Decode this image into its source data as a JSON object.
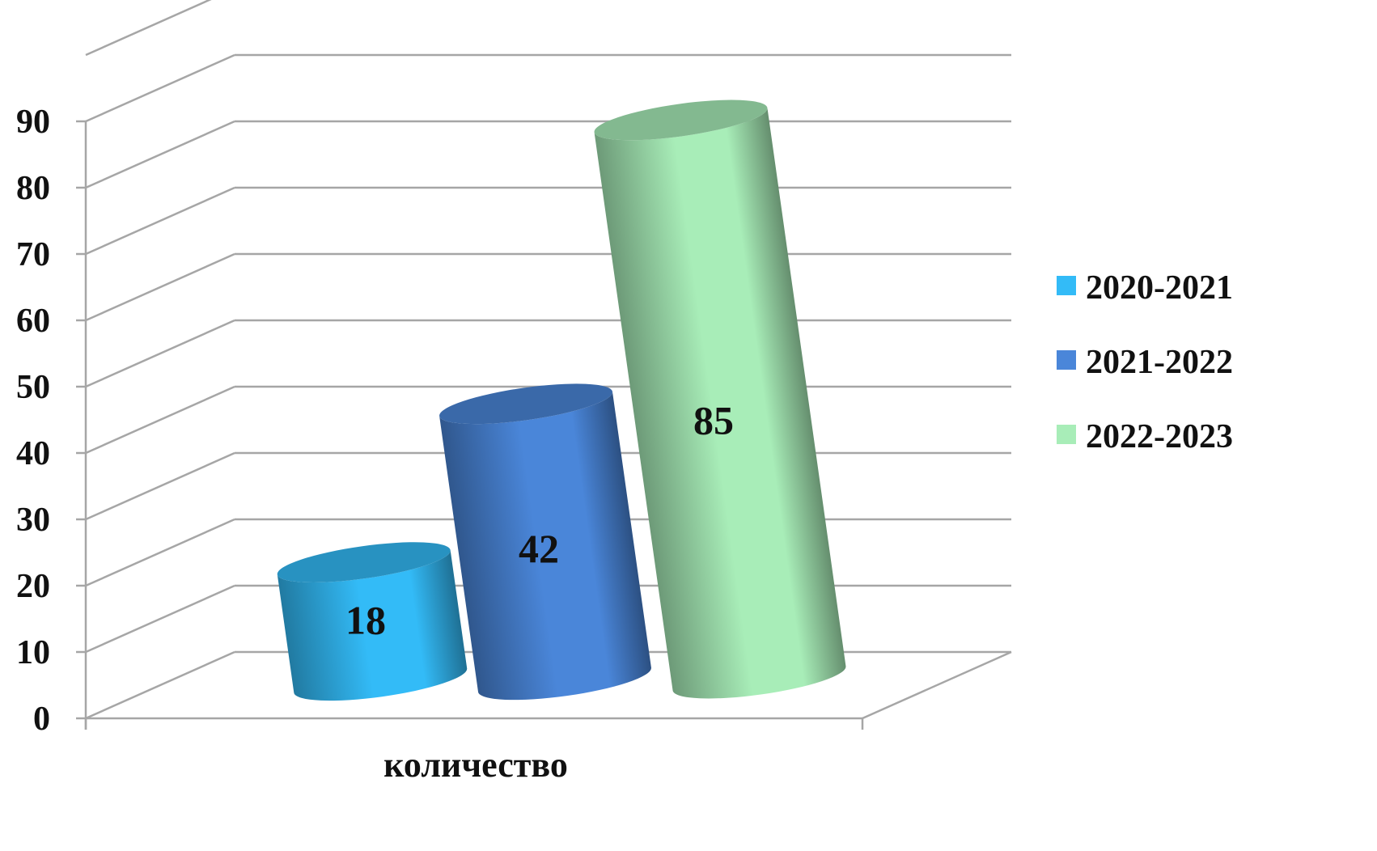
{
  "chart_data": {
    "type": "bar",
    "style": "3d-cylinder",
    "categories": [
      "количество"
    ],
    "xlabel": "",
    "ylabel": "",
    "ylim": [
      0,
      90
    ],
    "yticks": [
      0,
      10,
      20,
      30,
      40,
      50,
      60,
      70,
      80,
      90
    ],
    "grid": true,
    "legend_position": "right",
    "series": [
      {
        "name": "2020-2021",
        "values": [
          18
        ],
        "color": "#33BBF7"
      },
      {
        "name": "2021-2022",
        "values": [
          42
        ],
        "color": "#4A86D9"
      },
      {
        "name": "2022-2023",
        "values": [
          85
        ],
        "color": "#A8EDB8"
      }
    ]
  }
}
